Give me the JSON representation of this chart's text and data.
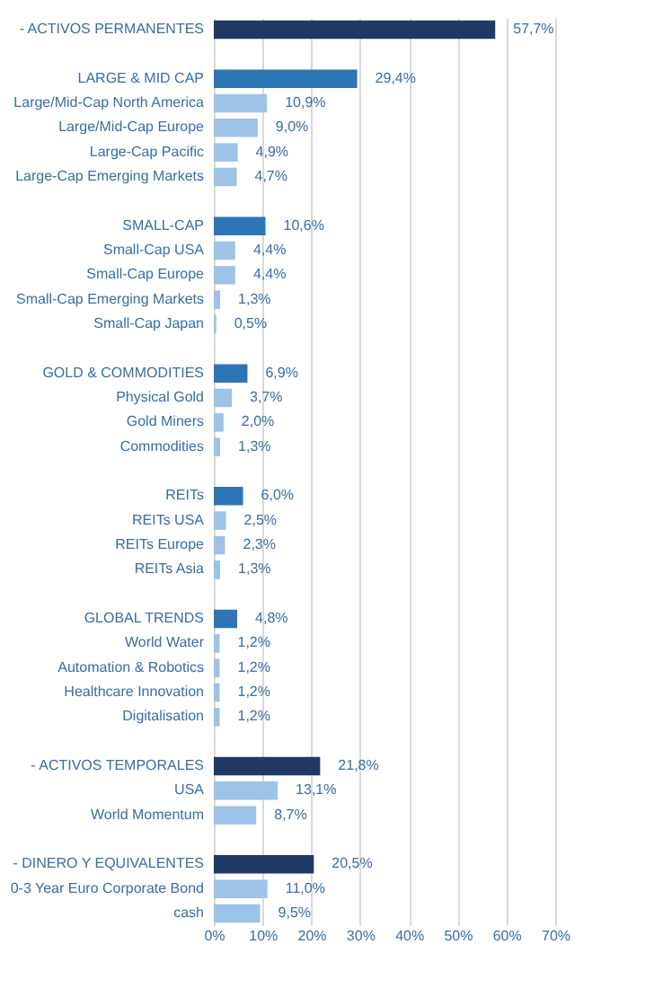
{
  "chart_data": {
    "type": "bar",
    "orientation": "horizontal",
    "categories": [
      "- ACTIVOS PERMANENTES",
      null,
      "LARGE & MID CAP",
      "Large/Mid-Cap North America",
      "Large/Mid-Cap Europe",
      "Large-Cap Pacific",
      "Large-Cap Emerging Markets",
      null,
      "SMALL-CAP",
      "Small-Cap USA",
      "Small-Cap Europe",
      "Small-Cap Emerging Markets",
      "Small-Cap Japan",
      null,
      "GOLD & COMMODITIES",
      "Physical Gold",
      "Gold Miners",
      "Commodities",
      null,
      "REITs",
      "REITs USA",
      "REITs Europe",
      "REITs Asia",
      null,
      "GLOBAL TRENDS",
      "World Water",
      "Automation & Robotics",
      "Healthcare Innovation",
      "Digitalisation",
      null,
      "- ACTIVOS TEMPORALES",
      "USA",
      "World Momentum",
      null,
      "- DINERO Y EQUIVALENTES",
      "0-3 Year Euro Corporate Bond",
      "cash"
    ],
    "values": [
      57.7,
      null,
      29.4,
      10.9,
      9.0,
      4.9,
      4.7,
      null,
      10.6,
      4.4,
      4.4,
      1.3,
      0.5,
      null,
      6.9,
      3.7,
      2.0,
      1.3,
      null,
      6.0,
      2.5,
      2.3,
      1.3,
      null,
      4.8,
      1.2,
      1.2,
      1.2,
      1.2,
      null,
      21.8,
      13.1,
      8.7,
      null,
      20.5,
      11.0,
      9.5
    ],
    "colors": [
      "#1f3864",
      null,
      "#2e75b6",
      "#9dc3e6",
      "#9dc3e6",
      "#9dc3e6",
      "#9dc3e6",
      null,
      "#2e75b6",
      "#9dc3e6",
      "#9dc3e6",
      "#9dc3e6",
      "#9dc3e6",
      null,
      "#2e75b6",
      "#9dc3e6",
      "#9dc3e6",
      "#9dc3e6",
      null,
      "#2e75b6",
      "#9dc3e6",
      "#9dc3e6",
      "#9dc3e6",
      null,
      "#2e75b6",
      "#9dc3e6",
      "#9dc3e6",
      "#9dc3e6",
      "#9dc3e6",
      null,
      "#1f3864",
      "#9dc3e6",
      "#9dc3e6",
      null,
      "#1f3864",
      "#9dc3e6",
      "#9dc3e6"
    ],
    "value_labels": [
      "57,7%",
      null,
      "29,4%",
      "10,9%",
      "9,0%",
      "4,9%",
      "4,7%",
      null,
      "10,6%",
      "4,4%",
      "4,4%",
      "1,3%",
      "0,5%",
      null,
      "6,9%",
      "3,7%",
      "2,0%",
      "1,3%",
      null,
      "6,0%",
      "2,5%",
      "2,3%",
      "1,3%",
      null,
      "4,8%",
      "1,2%",
      "1,2%",
      "1,2%",
      "1,2%",
      null,
      "21,8%",
      "13,1%",
      "8,7%",
      null,
      "20,5%",
      "11,0%",
      "9,5%"
    ],
    "xlim": [
      0,
      70
    ],
    "xticks": [
      {
        "value": 0,
        "label": "0%"
      },
      {
        "value": 10,
        "label": "10%"
      },
      {
        "value": 20,
        "label": "20%"
      },
      {
        "value": 30,
        "label": "30%"
      },
      {
        "value": 40,
        "label": "40%"
      },
      {
        "value": 50,
        "label": "50%"
      },
      {
        "value": 60,
        "label": "60%"
      },
      {
        "value": 70,
        "label": "70%"
      }
    ],
    "grid": "x"
  }
}
